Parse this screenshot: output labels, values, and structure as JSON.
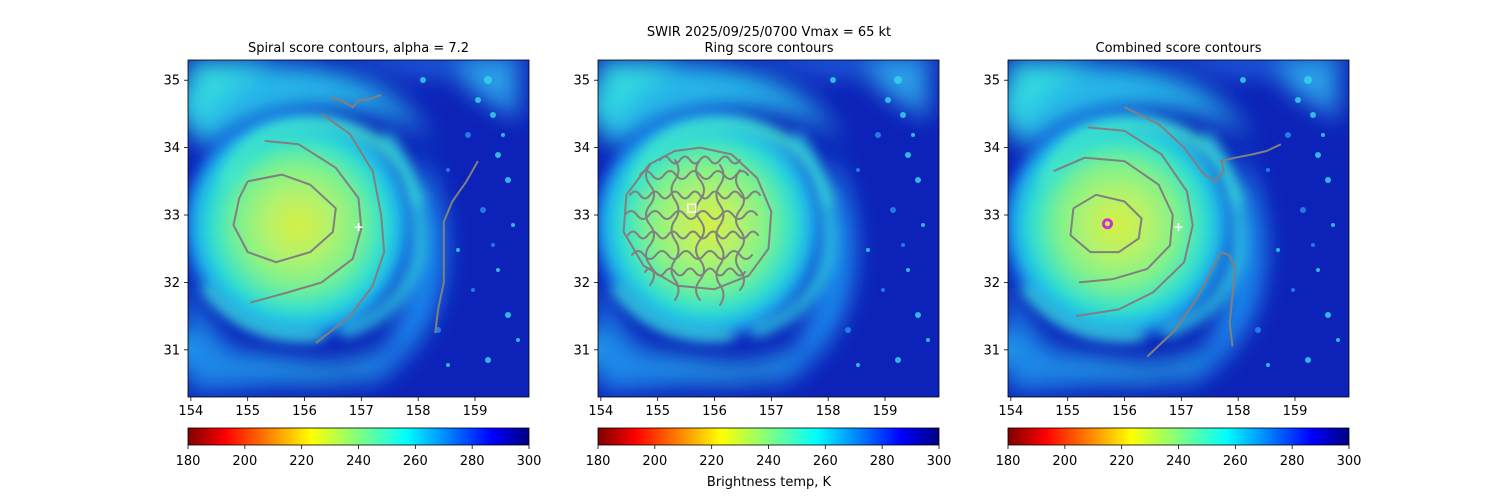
{
  "figure": {
    "suptitle_line1": "SWIR  2025/09/25/0700    Vmax = 65 kt",
    "colorbar_label": "Brightness temp, K"
  },
  "colors": {
    "contour": "#808080",
    "marker_plus": "#ffffff",
    "marker_ring": "#cc33cc",
    "marker_square": "#ffffff"
  },
  "chart_data": [
    {
      "type": "heatmap",
      "title": "Spiral score contours, alpha =  7.2",
      "xlim": [
        153.95,
        159.95
      ],
      "ylim": [
        30.3,
        35.3
      ],
      "xticks": [
        "154",
        "155",
        "156",
        "157",
        "158",
        "159"
      ],
      "yticks": [
        "31",
        "32",
        "33",
        "34",
        "35"
      ],
      "colorbar": {
        "cmap": "jet_r",
        "range": [
          180,
          300
        ],
        "ticks": [
          "180",
          "200",
          "220",
          "240",
          "260",
          "280",
          "300"
        ]
      },
      "markers": [
        {
          "kind": "plus",
          "x": 156.95,
          "y": 32.82
        }
      ],
      "contours": [
        {
          "name": "inner-ring",
          "points": [
            [
              155.0,
              33.5
            ],
            [
              155.6,
              33.6
            ],
            [
              156.1,
              33.45
            ],
            [
              156.55,
              33.1
            ],
            [
              156.5,
              32.75
            ],
            [
              156.1,
              32.45
            ],
            [
              155.5,
              32.3
            ],
            [
              155.0,
              32.45
            ],
            [
              154.75,
              32.85
            ],
            [
              154.85,
              33.25
            ],
            [
              155.0,
              33.5
            ]
          ]
        },
        {
          "name": "middle-arc",
          "points": [
            [
              155.3,
              34.1
            ],
            [
              155.9,
              34.05
            ],
            [
              156.55,
              33.7
            ],
            [
              156.95,
              33.25
            ],
            [
              157.0,
              32.8
            ],
            [
              156.85,
              32.35
            ],
            [
              156.3,
              32.0
            ],
            [
              155.7,
              31.85
            ],
            [
              155.05,
              31.7
            ]
          ]
        },
        {
          "name": "outer-arc",
          "points": [
            [
              156.3,
              34.5
            ],
            [
              156.8,
              34.2
            ],
            [
              157.2,
              33.65
            ],
            [
              157.35,
              33.0
            ],
            [
              157.4,
              32.45
            ],
            [
              157.2,
              31.95
            ],
            [
              156.8,
              31.5
            ],
            [
              156.2,
              31.1
            ]
          ]
        },
        {
          "name": "top-squiggle",
          "points": [
            [
              156.45,
              34.75
            ],
            [
              156.65,
              34.7
            ],
            [
              156.85,
              34.6
            ],
            [
              156.95,
              34.7
            ],
            [
              157.15,
              34.72
            ],
            [
              157.35,
              34.78
            ]
          ]
        },
        {
          "name": "right-line",
          "points": [
            [
              159.05,
              33.8
            ],
            [
              158.85,
              33.5
            ],
            [
              158.6,
              33.2
            ],
            [
              158.45,
              32.9
            ],
            [
              158.45,
              32.4
            ],
            [
              158.45,
              32.0
            ],
            [
              158.35,
              31.6
            ],
            [
              158.3,
              31.25
            ]
          ]
        }
      ]
    },
    {
      "type": "heatmap",
      "title": "Ring score contours",
      "xlim": [
        153.95,
        159.95
      ],
      "ylim": [
        30.3,
        35.3
      ],
      "xticks": [
        "154",
        "155",
        "156",
        "157",
        "158",
        "159"
      ],
      "yticks": [
        "31",
        "32",
        "33",
        "34",
        "35"
      ],
      "colorbar": {
        "cmap": "jet_r",
        "range": [
          180,
          300
        ],
        "ticks": [
          "180",
          "200",
          "220",
          "240",
          "260",
          "280",
          "300"
        ]
      },
      "markers": [
        {
          "kind": "square",
          "x": 155.6,
          "y": 33.1
        }
      ],
      "contours": [
        {
          "name": "ring-cluster-boundary",
          "points": [
            [
              155.75,
              34.0
            ],
            [
              156.3,
              33.9
            ],
            [
              156.75,
              33.55
            ],
            [
              157.0,
              33.05
            ],
            [
              156.95,
              32.5
            ],
            [
              156.6,
              32.1
            ],
            [
              156.0,
              31.9
            ],
            [
              155.35,
              31.95
            ],
            [
              154.75,
              32.25
            ],
            [
              154.4,
              32.75
            ],
            [
              154.45,
              33.3
            ],
            [
              154.85,
              33.75
            ],
            [
              155.3,
              33.95
            ],
            [
              155.75,
              34.0
            ]
          ]
        }
      ]
    },
    {
      "type": "heatmap",
      "title": "Combined score contours",
      "xlim": [
        153.95,
        159.95
      ],
      "ylim": [
        30.3,
        35.3
      ],
      "xticks": [
        "154",
        "155",
        "156",
        "157",
        "158",
        "159"
      ],
      "yticks": [
        "31",
        "32",
        "33",
        "34",
        "35"
      ],
      "colorbar": {
        "cmap": "jet_r",
        "range": [
          180,
          300
        ],
        "ticks": [
          "180",
          "200",
          "220",
          "240",
          "260",
          "280",
          "300"
        ]
      },
      "markers": [
        {
          "kind": "ring",
          "x": 155.7,
          "y": 32.87
        },
        {
          "kind": "plus",
          "x": 156.95,
          "y": 32.82
        }
      ],
      "contours": [
        {
          "name": "inner-ring",
          "points": [
            [
              155.1,
              33.1
            ],
            [
              155.5,
              33.3
            ],
            [
              156.0,
              33.2
            ],
            [
              156.3,
              32.95
            ],
            [
              156.25,
              32.65
            ],
            [
              155.9,
              32.45
            ],
            [
              155.4,
              32.45
            ],
            [
              155.05,
              32.7
            ],
            [
              155.1,
              33.1
            ]
          ]
        },
        {
          "name": "middle-arc",
          "points": [
            [
              154.75,
              33.65
            ],
            [
              155.3,
              33.85
            ],
            [
              156.0,
              33.8
            ],
            [
              156.6,
              33.45
            ],
            [
              156.85,
              33.0
            ],
            [
              156.8,
              32.55
            ],
            [
              156.4,
              32.2
            ],
            [
              155.8,
              32.05
            ],
            [
              155.2,
              32.0
            ]
          ]
        },
        {
          "name": "outer-arc",
          "points": [
            [
              155.35,
              34.3
            ],
            [
              156.0,
              34.25
            ],
            [
              156.65,
              33.9
            ],
            [
              157.1,
              33.35
            ],
            [
              157.2,
              32.85
            ],
            [
              157.05,
              32.3
            ],
            [
              156.5,
              31.85
            ],
            [
              155.9,
              31.6
            ],
            [
              155.15,
              31.5
            ]
          ]
        },
        {
          "name": "upper-right-line",
          "points": [
            [
              156.0,
              34.6
            ],
            [
              156.6,
              34.35
            ],
            [
              157.05,
              34.0
            ],
            [
              157.4,
              33.6
            ],
            [
              157.6,
              33.5
            ],
            [
              157.75,
              33.65
            ],
            [
              157.7,
              33.8
            ],
            [
              157.95,
              33.85
            ],
            [
              158.25,
              33.9
            ],
            [
              158.5,
              33.95
            ],
            [
              158.75,
              34.05
            ]
          ]
        },
        {
          "name": "lower-right-line",
          "points": [
            [
              156.4,
              30.9
            ],
            [
              156.9,
              31.3
            ],
            [
              157.3,
              31.8
            ],
            [
              157.55,
              32.2
            ],
            [
              157.7,
              32.45
            ],
            [
              157.85,
              32.4
            ],
            [
              157.95,
              32.2
            ],
            [
              157.9,
              31.8
            ],
            [
              157.85,
              31.4
            ],
            [
              157.9,
              31.05
            ]
          ]
        }
      ]
    }
  ]
}
